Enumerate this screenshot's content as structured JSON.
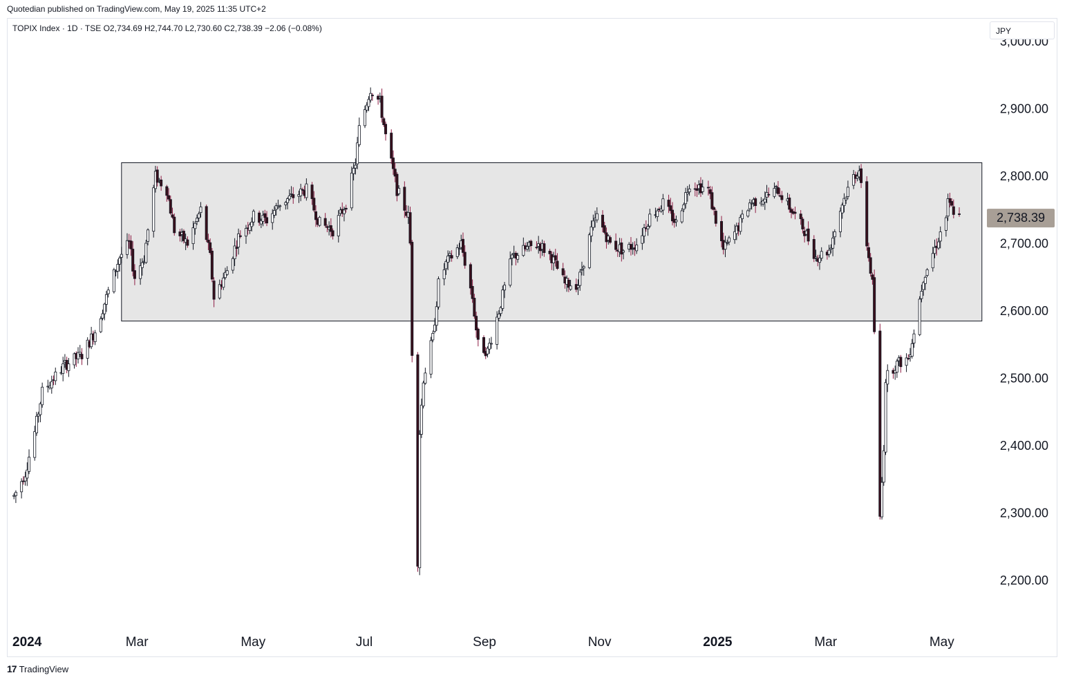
{
  "header": {
    "published": "Quotedian published on TradingView.com, May 19, 2025 11:35 UTC+2"
  },
  "legend": {
    "text": "TOPIX Index · 1D · TSE   O2,734.69   H2,744.70   L2,730.60   C2,738.39   −2.06 (−0.08%)"
  },
  "currency": "JPY",
  "footer": {
    "brand": "TradingView",
    "logo": "17"
  },
  "colors": {
    "up_body": "#ffffff",
    "down_body": "#3a0f1c",
    "down_wick": "#8e1c43",
    "outline": "#131722",
    "range_box": "#e6e6e6",
    "price_tag": "#a89f96"
  },
  "chart_data": {
    "type": "candlestick",
    "title": "TOPIX Index · 1D · TSE",
    "ylim": [
      2160,
      3010
    ],
    "y_ticks": [
      "3,000.00",
      "2,900.00",
      "2,800.00",
      "2,700.00",
      "2,600.00",
      "2,500.00",
      "2,400.00",
      "2,300.00",
      "2,200.00"
    ],
    "y_tick_values": [
      3000,
      2900,
      2800,
      2700,
      2600,
      2500,
      2400,
      2300,
      2200
    ],
    "x_labels": [
      {
        "label": "2024",
        "month": "2024-01",
        "year": true
      },
      {
        "label": "Mar",
        "month": "2024-03"
      },
      {
        "label": "May",
        "month": "2024-05"
      },
      {
        "label": "Jul",
        "month": "2024-07"
      },
      {
        "label": "Sep",
        "month": "2024-09"
      },
      {
        "label": "Nov",
        "month": "2024-11"
      },
      {
        "label": "2025",
        "month": "2025-01",
        "year": true
      },
      {
        "label": "Mar",
        "month": "2025-03"
      },
      {
        "label": "May",
        "month": "2025-05"
      }
    ],
    "range_box": {
      "from": "2024-03-01",
      "to": "2025-05-31",
      "high": 2820,
      "low": 2585
    },
    "last_price": {
      "value": 2738.39,
      "label": "2,738.39"
    },
    "close_path": [
      [
        "2024-01-04",
        2325
      ],
      [
        "2024-01-10",
        2360
      ],
      [
        "2024-01-15",
        2420
      ],
      [
        "2024-01-19",
        2480
      ],
      [
        "2024-01-25",
        2500
      ],
      [
        "2024-01-31",
        2520
      ],
      [
        "2024-02-09",
        2535
      ],
      [
        "2024-02-16",
        2570
      ],
      [
        "2024-02-22",
        2620
      ],
      [
        "2024-02-29",
        2680
      ],
      [
        "2024-03-05",
        2700
      ],
      [
        "2024-03-08",
        2650
      ],
      [
        "2024-03-13",
        2680
      ],
      [
        "2024-03-19",
        2800
      ],
      [
        "2024-03-25",
        2780
      ],
      [
        "2024-03-29",
        2720
      ],
      [
        "2024-04-05",
        2700
      ],
      [
        "2024-04-12",
        2750
      ],
      [
        "2024-04-17",
        2680
      ],
      [
        "2024-04-19",
        2620
      ],
      [
        "2024-04-26",
        2660
      ],
      [
        "2024-05-02",
        2710
      ],
      [
        "2024-05-10",
        2740
      ],
      [
        "2024-05-17",
        2735
      ],
      [
        "2024-05-24",
        2760
      ],
      [
        "2024-05-31",
        2770
      ],
      [
        "2024-06-07",
        2780
      ],
      [
        "2024-06-14",
        2730
      ],
      [
        "2024-06-21",
        2720
      ],
      [
        "2024-06-28",
        2760
      ],
      [
        "2024-07-03",
        2820
      ],
      [
        "2024-07-05",
        2870
      ],
      [
        "2024-07-11",
        2930
      ],
      [
        "2024-07-16",
        2910
      ],
      [
        "2024-07-19",
        2860
      ],
      [
        "2024-07-25",
        2780
      ],
      [
        "2024-07-31",
        2740
      ],
      [
        "2024-08-01",
        2700
      ],
      [
        "2024-08-02",
        2540
      ],
      [
        "2024-08-05",
        2230
      ],
      [
        "2024-08-06",
        2420
      ],
      [
        "2024-08-08",
        2500
      ],
      [
        "2024-08-13",
        2560
      ],
      [
        "2024-08-16",
        2640
      ],
      [
        "2024-08-20",
        2670
      ],
      [
        "2024-08-28",
        2700
      ],
      [
        "2024-09-03",
        2620
      ],
      [
        "2024-09-06",
        2550
      ],
      [
        "2024-09-11",
        2540
      ],
      [
        "2024-09-17",
        2600
      ],
      [
        "2024-09-24",
        2680
      ],
      [
        "2024-09-30",
        2690
      ],
      [
        "2024-10-08",
        2700
      ],
      [
        "2024-10-15",
        2680
      ],
      [
        "2024-10-22",
        2640
      ],
      [
        "2024-10-29",
        2640
      ],
      [
        "2024-11-05",
        2720
      ],
      [
        "2024-11-08",
        2740
      ],
      [
        "2024-11-15",
        2700
      ],
      [
        "2024-11-22",
        2690
      ],
      [
        "2024-11-29",
        2700
      ],
      [
        "2024-12-06",
        2740
      ],
      [
        "2024-12-13",
        2760
      ],
      [
        "2024-12-20",
        2730
      ],
      [
        "2024-12-27",
        2790
      ],
      [
        "2025-01-06",
        2780
      ],
      [
        "2025-01-14",
        2690
      ],
      [
        "2025-01-21",
        2720
      ],
      [
        "2025-01-28",
        2760
      ],
      [
        "2025-02-05",
        2770
      ],
      [
        "2025-02-12",
        2780
      ],
      [
        "2025-02-19",
        2750
      ],
      [
        "2025-02-26",
        2720
      ],
      [
        "2025-03-04",
        2680
      ],
      [
        "2025-03-11",
        2690
      ],
      [
        "2025-03-18",
        2760
      ],
      [
        "2025-03-24",
        2800
      ],
      [
        "2025-03-27",
        2810
      ],
      [
        "2025-03-31",
        2700
      ],
      [
        "2025-04-03",
        2640
      ],
      [
        "2025-04-04",
        2570
      ],
      [
        "2025-04-07",
        2290
      ],
      [
        "2025-04-09",
        2400
      ],
      [
        "2025-04-10",
        2500
      ],
      [
        "2025-04-15",
        2520
      ],
      [
        "2025-04-22",
        2530
      ],
      [
        "2025-04-25",
        2570
      ],
      [
        "2025-04-30",
        2650
      ],
      [
        "2025-05-07",
        2700
      ],
      [
        "2025-05-12",
        2740
      ],
      [
        "2025-05-13",
        2760
      ],
      [
        "2025-05-19",
        2738
      ]
    ]
  }
}
